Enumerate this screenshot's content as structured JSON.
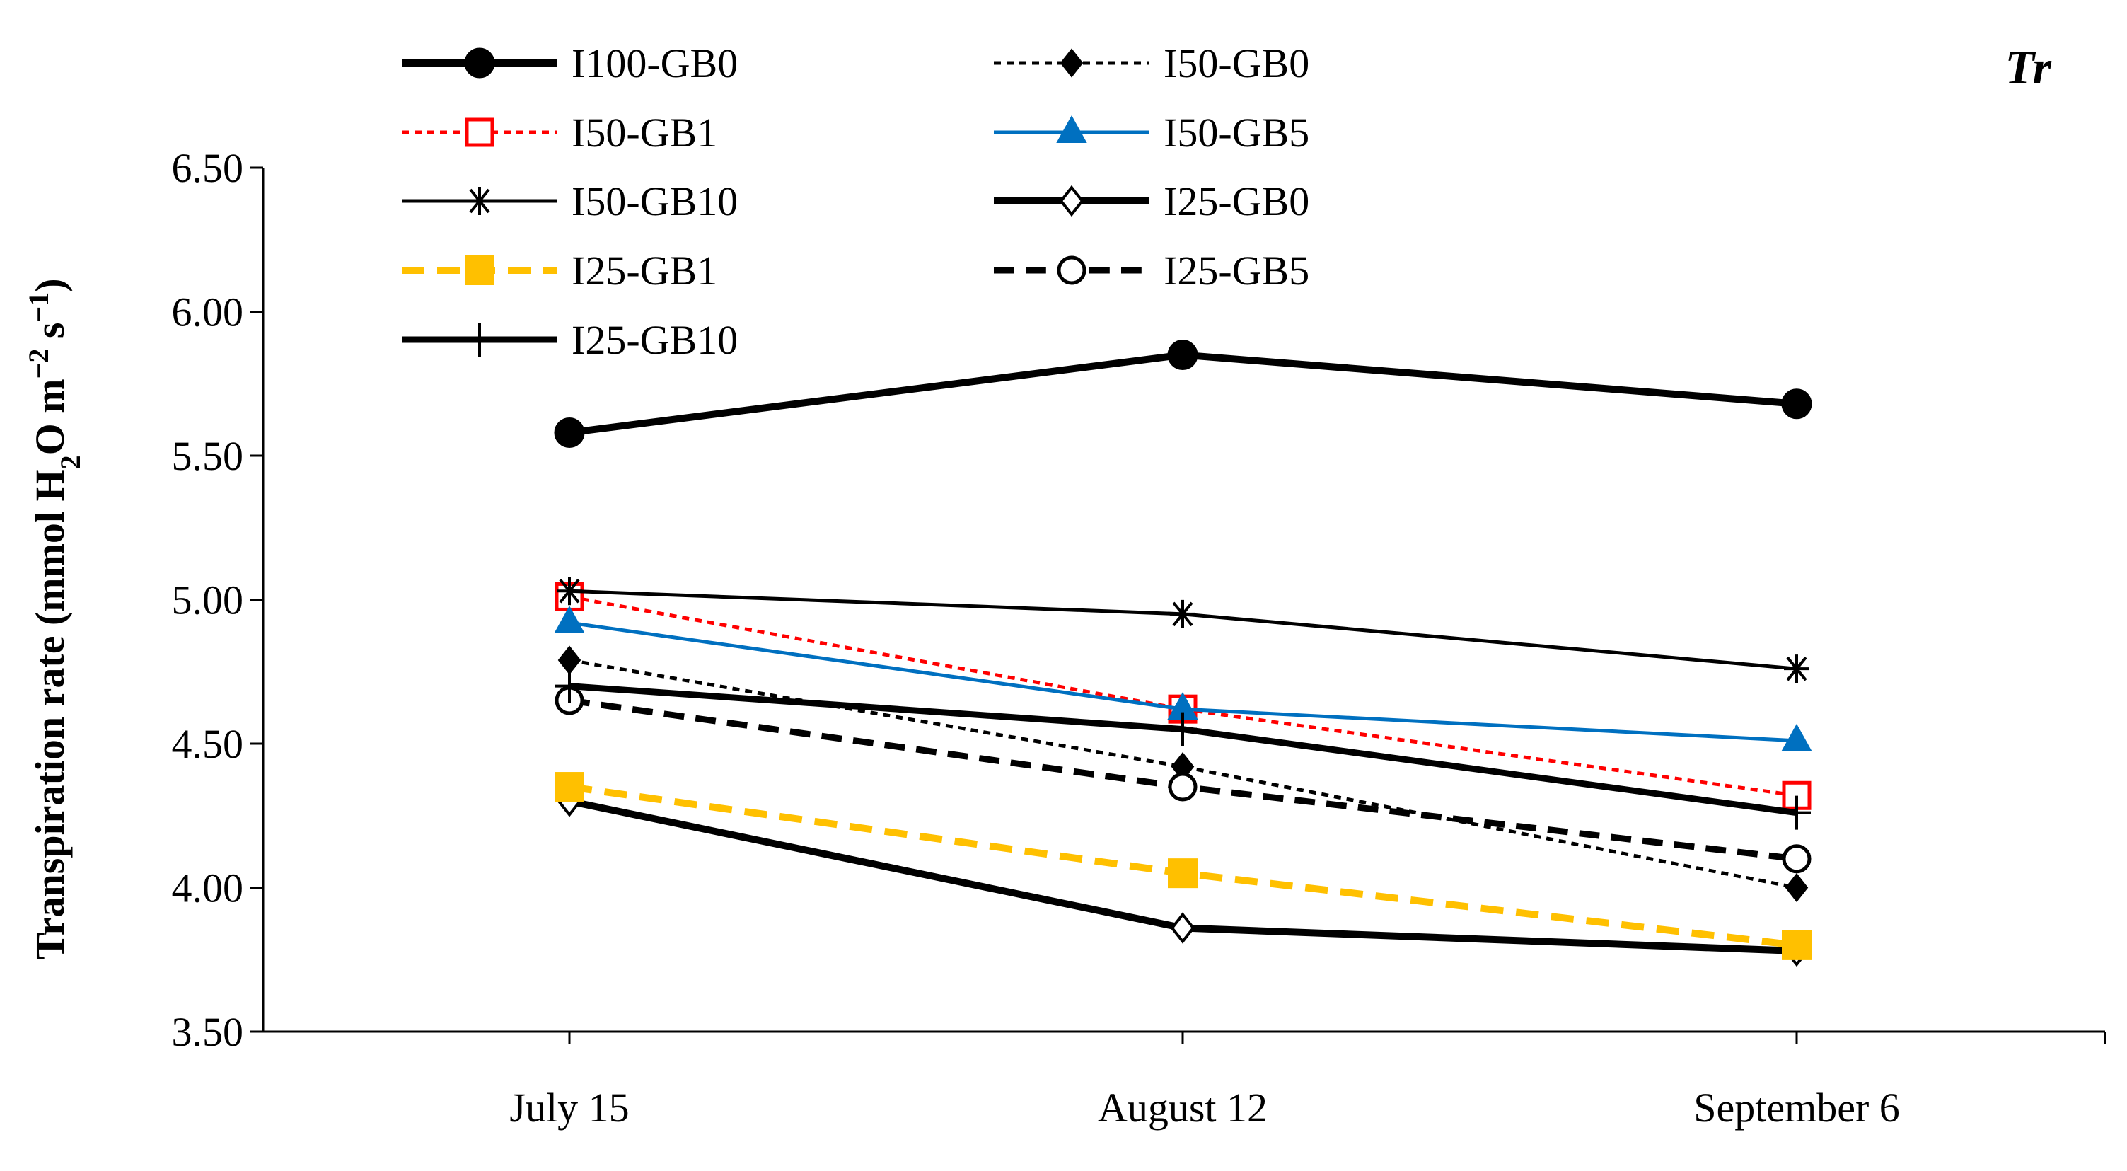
{
  "chart_data": {
    "type": "line",
    "panel_label": "Tr",
    "title": "",
    "xlabel": "",
    "ylabel": "Transpiration rate (mmol H2O m−2 s−1)",
    "ylabel_parts": {
      "pre": "Transpiration rate (mmol H",
      "sub": "2",
      "mid": "O m",
      "sup1": "−2",
      "mid2": " s",
      "sup2": "−1",
      "post": ")"
    },
    "categories": [
      "July 15",
      "August 12",
      "September 6"
    ],
    "ylim": [
      3.5,
      6.5
    ],
    "yticks": [
      "3.50",
      "4.00",
      "4.50",
      "5.00",
      "5.50",
      "6.00",
      "6.50"
    ],
    "grid": false,
    "legend_position": "top",
    "series": [
      {
        "name": "I100-GB0",
        "values": [
          5.58,
          5.85,
          5.68
        ],
        "color": "#000000",
        "line": "solid",
        "marker": "circle-filled",
        "width": 10
      },
      {
        "name": "I50-GB0",
        "values": [
          4.79,
          4.42,
          4.0
        ],
        "color": "#000000",
        "line": "dotted",
        "marker": "diamond-filled",
        "width": 5
      },
      {
        "name": "I50-GB1",
        "values": [
          5.01,
          4.62,
          4.32
        ],
        "color": "#ff0000",
        "line": "dotted",
        "marker": "square-open",
        "width": 5
      },
      {
        "name": "I50-GB5",
        "values": [
          4.92,
          4.62,
          4.51
        ],
        "color": "#0070c0",
        "line": "solid",
        "marker": "triangle-filled",
        "width": 5
      },
      {
        "name": "I50-GB10",
        "values": [
          5.03,
          4.95,
          4.76
        ],
        "color": "#000000",
        "line": "solid",
        "marker": "star",
        "width": 5
      },
      {
        "name": "I25-GB0",
        "values": [
          4.3,
          3.86,
          3.78
        ],
        "color": "#000000",
        "line": "solid",
        "marker": "diamond-open",
        "width": 10
      },
      {
        "name": "I25-GB1",
        "values": [
          4.35,
          4.05,
          3.8
        ],
        "color": "#ffc000",
        "line": "dashed",
        "marker": "square-filled",
        "width": 10
      },
      {
        "name": "I25-GB5",
        "values": [
          4.65,
          4.35,
          4.1
        ],
        "color": "#000000",
        "line": "dashed",
        "marker": "circle-open",
        "width": 9
      },
      {
        "name": "I25-GB10",
        "values": [
          4.7,
          4.55,
          4.26
        ],
        "color": "#000000",
        "line": "solid",
        "marker": "plus",
        "width": 9
      }
    ]
  }
}
